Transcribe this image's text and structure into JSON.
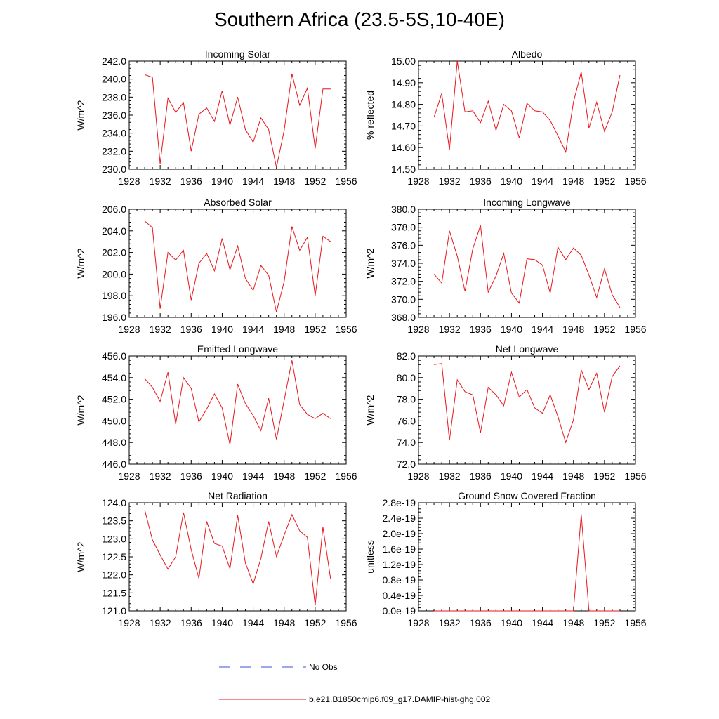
{
  "title": "Southern Africa (23.5-5S,10-40E)",
  "line_color": "#e8161b",
  "obs_color": "#3b4fd8",
  "legend": {
    "obs_label": "No Obs",
    "model_label": "b.e21.B1850cmip6.f09_g17.DAMIP-hist-ghg.002"
  },
  "chart_data": [
    {
      "type": "line",
      "title": "Incoming Solar",
      "ylabel": "W/m^2",
      "xlim": [
        1928,
        1956
      ],
      "ylim": [
        230,
        242
      ],
      "yticks": [
        230,
        232,
        234,
        236,
        238,
        240,
        242
      ],
      "ytick_format": "fixed1",
      "xticks": [
        1928,
        1932,
        1936,
        1940,
        1944,
        1948,
        1952,
        1956
      ],
      "x": [
        1930,
        1931,
        1932,
        1933,
        1934,
        1935,
        1936,
        1937,
        1938,
        1939,
        1940,
        1941,
        1942,
        1943,
        1944,
        1945,
        1946,
        1947,
        1948,
        1949,
        1950,
        1951,
        1952,
        1953,
        1954
      ],
      "values": [
        240.5,
        240.2,
        230.6,
        237.9,
        236.3,
        237.4,
        232.0,
        236.1,
        236.8,
        235.3,
        238.7,
        234.9,
        238.0,
        234.4,
        233.0,
        235.7,
        234.4,
        230.2,
        234.3,
        240.6,
        237.1,
        239.0,
        232.3,
        238.9,
        238.9
      ]
    },
    {
      "type": "line",
      "title": "Albedo",
      "ylabel": "% reflected",
      "xlim": [
        1928,
        1956
      ],
      "ylim": [
        14.5,
        15.0
      ],
      "yticks": [
        14.5,
        14.6,
        14.7,
        14.8,
        14.9,
        15.0
      ],
      "ytick_format": "fixed2",
      "xticks": [
        1928,
        1932,
        1936,
        1940,
        1944,
        1948,
        1952,
        1956
      ],
      "x": [
        1930,
        1931,
        1932,
        1933,
        1934,
        1935,
        1936,
        1937,
        1938,
        1939,
        1940,
        1941,
        1942,
        1943,
        1944,
        1945,
        1946,
        1947,
        1948,
        1949,
        1950,
        1951,
        1952,
        1953,
        1954
      ],
      "values": [
        14.74,
        14.85,
        14.59,
        15.0,
        14.765,
        14.77,
        14.715,
        14.815,
        14.68,
        14.8,
        14.77,
        14.645,
        14.805,
        14.77,
        14.765,
        14.725,
        14.655,
        14.58,
        14.81,
        14.95,
        14.69,
        14.81,
        14.675,
        14.765,
        14.935
      ]
    },
    {
      "type": "line",
      "title": "Absorbed Solar",
      "ylabel": "W/m^2",
      "xlim": [
        1928,
        1956
      ],
      "ylim": [
        196,
        206
      ],
      "yticks": [
        196,
        198,
        200,
        202,
        204,
        206
      ],
      "ytick_format": "fixed1",
      "xticks": [
        1928,
        1932,
        1936,
        1940,
        1944,
        1948,
        1952,
        1956
      ],
      "x": [
        1930,
        1931,
        1932,
        1933,
        1934,
        1935,
        1936,
        1937,
        1938,
        1939,
        1940,
        1941,
        1942,
        1943,
        1944,
        1945,
        1946,
        1947,
        1948,
        1949,
        1950,
        1951,
        1952,
        1953,
        1954
      ],
      "values": [
        204.9,
        204.3,
        196.8,
        202.0,
        201.3,
        202.2,
        197.6,
        201.0,
        201.9,
        200.3,
        203.3,
        200.4,
        202.6,
        199.6,
        198.5,
        200.8,
        199.9,
        196.5,
        199.3,
        204.4,
        202.2,
        203.4,
        198.0,
        203.5,
        203.0
      ]
    },
    {
      "type": "line",
      "title": "Incoming Longwave",
      "ylabel": "W/m^2",
      "xlim": [
        1928,
        1956
      ],
      "ylim": [
        368,
        380
      ],
      "yticks": [
        368,
        370,
        372,
        374,
        376,
        378,
        380
      ],
      "ytick_format": "fixed1",
      "xticks": [
        1928,
        1932,
        1936,
        1940,
        1944,
        1948,
        1952,
        1956
      ],
      "x": [
        1930,
        1931,
        1932,
        1933,
        1934,
        1935,
        1936,
        1937,
        1938,
        1939,
        1940,
        1941,
        1942,
        1943,
        1944,
        1945,
        1946,
        1947,
        1948,
        1949,
        1950,
        1951,
        1952,
        1953,
        1954
      ],
      "values": [
        372.8,
        371.8,
        377.6,
        374.8,
        370.9,
        375.6,
        378.2,
        370.8,
        372.6,
        375.1,
        370.7,
        369.6,
        374.5,
        374.4,
        373.8,
        370.7,
        375.8,
        374.4,
        375.7,
        374.9,
        372.7,
        370.2,
        373.4,
        370.5,
        369.1
      ]
    },
    {
      "type": "line",
      "title": "Emitted Longwave",
      "ylabel": "W/m^2",
      "xlim": [
        1928,
        1956
      ],
      "ylim": [
        446,
        456
      ],
      "yticks": [
        446,
        448,
        450,
        452,
        454,
        456
      ],
      "ytick_format": "fixed1",
      "xticks": [
        1928,
        1932,
        1936,
        1940,
        1944,
        1948,
        1952,
        1956
      ],
      "x": [
        1930,
        1931,
        1932,
        1933,
        1934,
        1935,
        1936,
        1937,
        1938,
        1939,
        1940,
        1941,
        1942,
        1943,
        1944,
        1945,
        1946,
        1947,
        1948,
        1949,
        1950,
        1951,
        1952,
        1953,
        1954
      ],
      "values": [
        453.9,
        453.1,
        451.8,
        454.5,
        449.7,
        454.0,
        453.0,
        449.9,
        451.1,
        452.5,
        451.2,
        447.8,
        453.4,
        451.6,
        450.5,
        449.1,
        452.1,
        448.3,
        451.9,
        455.6,
        451.5,
        450.6,
        450.2,
        450.7,
        450.2
      ]
    },
    {
      "type": "line",
      "title": "Net Longwave",
      "ylabel": "W/m^2",
      "xlim": [
        1928,
        1956
      ],
      "ylim": [
        72,
        82
      ],
      "yticks": [
        72,
        74,
        76,
        78,
        80,
        82
      ],
      "ytick_format": "fixed1",
      "xticks": [
        1928,
        1932,
        1936,
        1940,
        1944,
        1948,
        1952,
        1956
      ],
      "x": [
        1930,
        1931,
        1932,
        1933,
        1934,
        1935,
        1936,
        1937,
        1938,
        1939,
        1940,
        1941,
        1942,
        1943,
        1944,
        1945,
        1946,
        1947,
        1948,
        1949,
        1950,
        1951,
        1952,
        1953,
        1954
      ],
      "values": [
        81.2,
        81.3,
        74.2,
        79.8,
        78.7,
        78.4,
        74.9,
        79.1,
        78.4,
        77.4,
        80.5,
        78.2,
        78.9,
        77.2,
        76.7,
        78.4,
        76.4,
        74.0,
        76.1,
        80.7,
        78.9,
        80.4,
        76.8,
        80.1,
        81.1
      ]
    },
    {
      "type": "line",
      "title": "Net Radiation",
      "ylabel": "W/m^2",
      "xlim": [
        1928,
        1956
      ],
      "ylim": [
        121,
        124
      ],
      "yticks": [
        121,
        121.5,
        122,
        122.5,
        123,
        123.5,
        124
      ],
      "ytick_format": "fixed1",
      "xticks": [
        1928,
        1932,
        1936,
        1940,
        1944,
        1948,
        1952,
        1956
      ],
      "x": [
        1930,
        1931,
        1932,
        1933,
        1934,
        1935,
        1936,
        1937,
        1938,
        1939,
        1940,
        1941,
        1942,
        1943,
        1944,
        1945,
        1946,
        1947,
        1948,
        1949,
        1950,
        1951,
        1952,
        1953,
        1954
      ],
      "values": [
        123.8,
        122.97,
        122.55,
        122.16,
        122.5,
        123.73,
        122.7,
        121.9,
        123.48,
        122.87,
        122.8,
        122.17,
        123.65,
        122.33,
        121.75,
        122.46,
        123.48,
        122.51,
        123.1,
        123.67,
        123.22,
        123.04,
        121.15,
        123.33,
        121.88
      ]
    },
    {
      "type": "line",
      "title": "Ground Snow Covered Fraction",
      "ylabel": "unitless",
      "xlim": [
        1928,
        1956
      ],
      "ylim": [
        0,
        2.8e-19
      ],
      "yticks": [
        0,
        4e-20,
        8e-20,
        1.2e-19,
        1.6e-19,
        2e-19,
        2.4e-19,
        2.8e-19
      ],
      "ytick_format": "sci19",
      "xticks": [
        1928,
        1932,
        1936,
        1940,
        1944,
        1948,
        1952,
        1956
      ],
      "x": [
        1930,
        1931,
        1932,
        1933,
        1934,
        1935,
        1936,
        1937,
        1938,
        1939,
        1940,
        1941,
        1942,
        1943,
        1944,
        1945,
        1946,
        1947,
        1948,
        1949,
        1950,
        1951,
        1952,
        1953,
        1954
      ],
      "values": [
        0,
        0,
        0,
        0,
        0,
        0,
        0,
        0,
        0,
        0,
        0,
        0,
        0,
        0,
        0,
        0,
        0,
        0,
        0,
        2.5e-19,
        0,
        0,
        0,
        0,
        0
      ]
    }
  ]
}
